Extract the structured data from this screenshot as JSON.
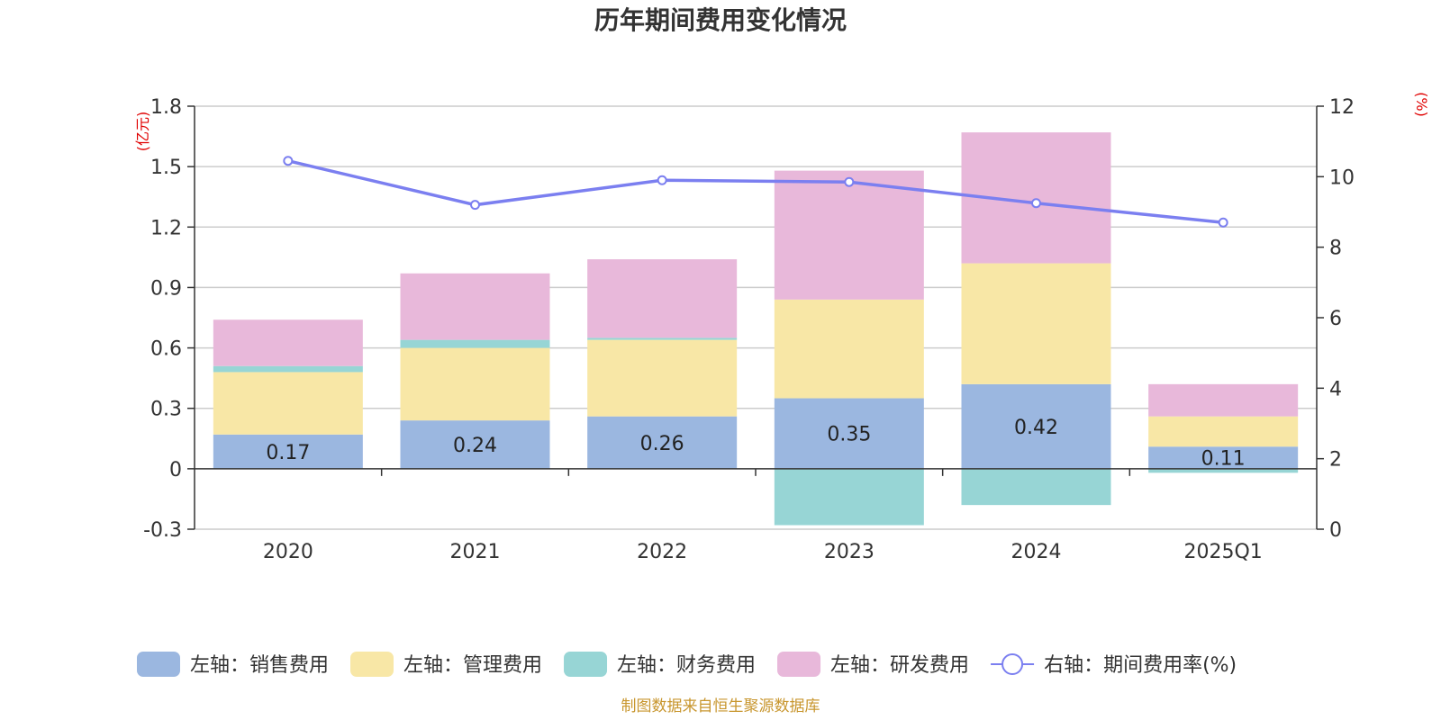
{
  "chart_data": {
    "type": "bar",
    "title": "历年期间费用变化情况",
    "categories": [
      "2020",
      "2021",
      "2022",
      "2023",
      "2024",
      "2025Q1"
    ],
    "left_axis": {
      "unit": "(亿元)",
      "ylim": [
        -0.3,
        1.8
      ],
      "ticks": [
        "-0.3",
        "0",
        "0.3",
        "0.6",
        "0.9",
        "1.2",
        "1.5",
        "1.8"
      ]
    },
    "right_axis": {
      "unit": "(%)",
      "ylim": [
        0,
        12
      ],
      "ticks": [
        "0",
        "2",
        "4",
        "6",
        "8",
        "10",
        "12"
      ]
    },
    "series": [
      {
        "name": "左轴：销售费用",
        "axis": "left",
        "kind": "bar",
        "color": "#9bb7e0",
        "values": [
          0.17,
          0.24,
          0.26,
          0.35,
          0.42,
          0.11
        ],
        "labels": [
          "0.17",
          "0.24",
          "0.26",
          "0.35",
          "0.42",
          "0.11"
        ]
      },
      {
        "name": "左轴：管理费用",
        "axis": "left",
        "kind": "bar",
        "color": "#f8e7a6",
        "values": [
          0.31,
          0.36,
          0.38,
          0.49,
          0.6,
          0.15
        ]
      },
      {
        "name": "左轴：财务费用",
        "axis": "left",
        "kind": "bar",
        "color": "#97d5d5",
        "values": [
          0.03,
          0.04,
          0.01,
          -0.28,
          -0.18,
          -0.02
        ]
      },
      {
        "name": "左轴：研发费用",
        "axis": "left",
        "kind": "bar",
        "color": "#e8b8da",
        "values": [
          0.23,
          0.33,
          0.39,
          0.64,
          0.65,
          0.16
        ]
      },
      {
        "name": "右轴：期间费用率(%)",
        "axis": "right",
        "kind": "line",
        "color": "#7b7ff0",
        "values": [
          10.45,
          9.2,
          9.9,
          9.85,
          9.25,
          8.7
        ]
      }
    ],
    "grid": true,
    "legend_position": "bottom"
  },
  "footer": {
    "source": "制图数据来自恒生聚源数据库"
  }
}
